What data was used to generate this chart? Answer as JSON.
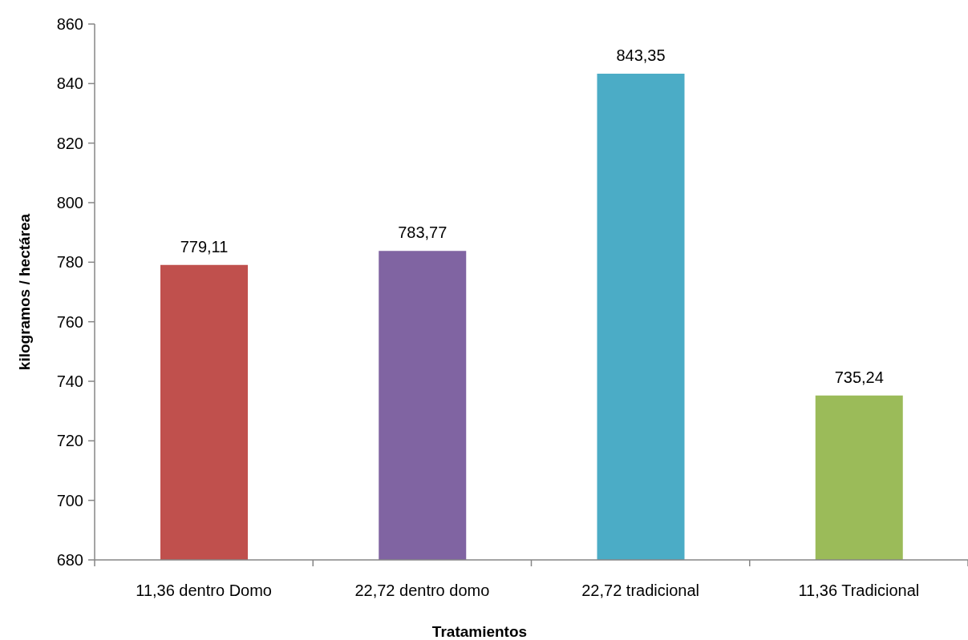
{
  "chart_data": {
    "type": "bar",
    "xlabel": "Tratamientos",
    "ylabel": "kilogramos / hectárea",
    "categories": [
      "11,36 dentro Domo",
      "22,72 dentro domo",
      "22,72 tradicional",
      "11,36 Tradicional"
    ],
    "values": [
      779.11,
      783.77,
      843.35,
      735.24
    ],
    "value_labels": [
      "779,11",
      "783,77",
      "843,35",
      "735,24"
    ],
    "colors": [
      "#c0504d",
      "#8064a2",
      "#4bacc6",
      "#9bbb59"
    ],
    "ylim": [
      680,
      860
    ],
    "yticks": [
      680,
      700,
      720,
      740,
      760,
      780,
      800,
      820,
      840,
      860
    ]
  }
}
